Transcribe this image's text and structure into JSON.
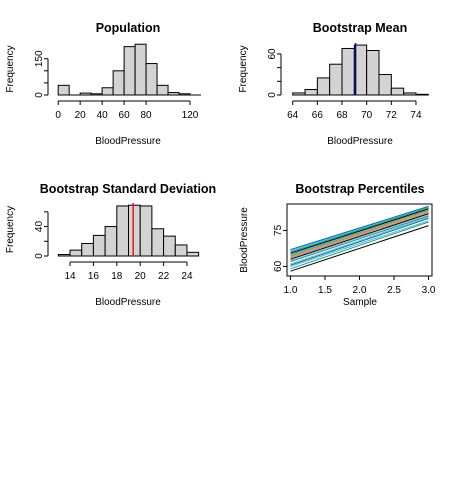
{
  "chart_data": [
    {
      "id": "population",
      "type": "bar",
      "title": "Population",
      "xlabel": "BloodPressure",
      "ylabel": "Frequency",
      "bin_edges": [
        0,
        10,
        20,
        30,
        40,
        50,
        60,
        70,
        80,
        90,
        100,
        110,
        120,
        130
      ],
      "values": [
        40,
        0,
        8,
        5,
        30,
        100,
        200,
        210,
        130,
        40,
        10,
        5,
        0
      ],
      "xlim": [
        -2,
        130
      ],
      "ylim": [
        0,
        215
      ],
      "xticks": [
        0,
        20,
        40,
        60,
        80,
        120
      ],
      "yticks": [
        0,
        50,
        100,
        150
      ],
      "ytick_labels": [
        "0",
        "",
        "",
        "150"
      ]
    },
    {
      "id": "bootstrap-mean",
      "type": "bar",
      "title": "Bootstrap Mean",
      "xlabel": "BloodPressure",
      "ylabel": "Frequency",
      "bin_edges": [
        64,
        65,
        66,
        67,
        68,
        69,
        70,
        71,
        72,
        73,
        74,
        75
      ],
      "values": [
        3,
        8,
        25,
        45,
        68,
        73,
        65,
        30,
        10,
        3,
        1
      ],
      "xlim": [
        63.7,
        75.3
      ],
      "ylim": [
        0,
        76
      ],
      "xticks": [
        64,
        66,
        68,
        70,
        72,
        74
      ],
      "yticks": [
        0,
        20,
        40,
        60
      ],
      "ytick_labels": [
        "0",
        "",
        "",
        "60"
      ],
      "vline": {
        "x": 69.1,
        "color": "#00008b"
      }
    },
    {
      "id": "bootstrap-sd",
      "type": "bar",
      "title": "Bootstrap Standard Deviation",
      "xlabel": "BloodPressure",
      "ylabel": "Frequency",
      "bin_edges": [
        13,
        14,
        15,
        16,
        17,
        18,
        19,
        20,
        21,
        22,
        23,
        24,
        25
      ],
      "values": [
        2,
        8,
        17,
        28,
        40,
        68,
        69,
        68,
        37,
        27,
        15,
        5
      ],
      "xlim": [
        12.8,
        25.2
      ],
      "ylim": [
        0,
        72
      ],
      "xticks": [
        14,
        16,
        18,
        20,
        22,
        24
      ],
      "yticks": [
        0,
        20,
        40,
        60
      ],
      "ytick_labels": [
        "0",
        "",
        "40",
        ""
      ],
      "vline": {
        "x": 19.4,
        "color": "#e31a1c"
      }
    },
    {
      "id": "bootstrap-percentiles",
      "type": "line",
      "title": "Bootstrap Percentiles",
      "xlabel": "Sample",
      "ylabel": "BloodPressure",
      "x": [
        1,
        3
      ],
      "xlim": [
        0.95,
        3.05
      ],
      "ylim": [
        56,
        86
      ],
      "xticks": [
        1.0,
        1.5,
        2.0,
        2.5,
        3.0
      ],
      "xtick_labels": [
        "1.0",
        "1.5",
        "2.0",
        "2.5",
        "3.0"
      ],
      "yticks": [
        60,
        75
      ],
      "ytick_labels": [
        "60",
        "75"
      ],
      "colors": [
        "#000000",
        "#1b9e77",
        "#56b4e9",
        "#0072b2",
        "#66c2a5",
        "#2c7fb8",
        "#7fcdbb",
        "#000000",
        "#999999",
        "#f46d43",
        "#4daf4a",
        "#3a9ad9"
      ],
      "series": [
        {
          "values": [
            58.0,
            77.0
          ]
        },
        {
          "values": [
            59.0,
            78.5
          ]
        },
        {
          "values": [
            60.0,
            79.0
          ]
        },
        {
          "values": [
            60.5,
            80.0
          ]
        },
        {
          "values": [
            61.0,
            80.5
          ]
        },
        {
          "values": [
            62.0,
            81.0
          ]
        },
        {
          "values": [
            62.5,
            81.5
          ]
        },
        {
          "values": [
            63.0,
            82.0
          ]
        },
        {
          "values": [
            63.5,
            82.5
          ]
        },
        {
          "values": [
            64.0,
            83.0
          ]
        },
        {
          "values": [
            64.5,
            83.5
          ]
        },
        {
          "values": [
            65.0,
            84.0
          ]
        },
        {
          "values": [
            65.5,
            84.0
          ]
        },
        {
          "values": [
            66.0,
            84.5
          ]
        },
        {
          "values": [
            66.5,
            85.0
          ]
        },
        {
          "values": [
            67.0,
            85.0
          ]
        }
      ]
    }
  ]
}
